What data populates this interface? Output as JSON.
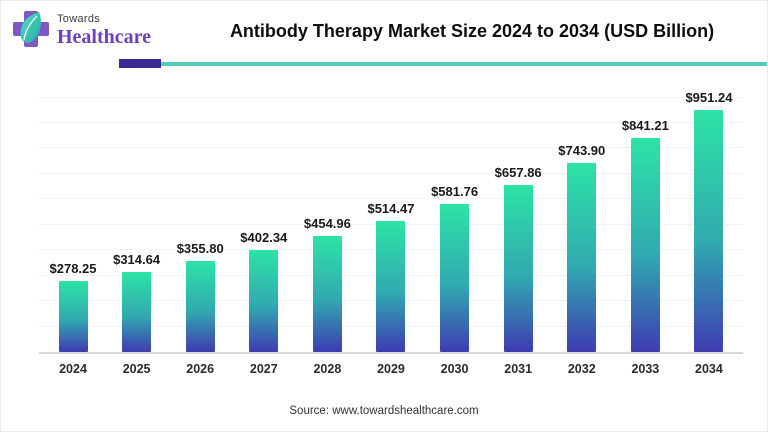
{
  "header": {
    "logo_line1": "Towards",
    "logo_line2": "Healthcare",
    "accent_purple": "#3b2a96",
    "accent_teal": "#4fcdb9",
    "logo_cross_color": "#7e57c8",
    "logo_leaf_color": "#35c9ad"
  },
  "chart_data": {
    "type": "bar",
    "title": "Antibody Therapy Market Size 2024 to 2034 (USD Billion)",
    "unit": "USD Billion",
    "categories": [
      "2024",
      "2025",
      "2026",
      "2027",
      "2028",
      "2029",
      "2030",
      "2031",
      "2032",
      "2033",
      "2034"
    ],
    "values": [
      278.25,
      314.64,
      355.8,
      402.34,
      454.96,
      514.47,
      581.76,
      657.86,
      743.9,
      841.21,
      951.24
    ],
    "labels": [
      "$278.25",
      "$314.64",
      "$355.80",
      "$402.34",
      "$454.96",
      "$514.47",
      "$581.76",
      "$657.86",
      "$743.90",
      "$841.21",
      "$951.24"
    ],
    "ylim": [
      0,
      1045
    ],
    "grid": true,
    "grid_step": 100,
    "legend": false,
    "bar_color_top": "#2de3a6",
    "bar_color_mid": "#31a9b0",
    "bar_color_bottom": "#3e3bb1"
  },
  "footer": {
    "source": "Source: www.towardshealthcare.com"
  }
}
